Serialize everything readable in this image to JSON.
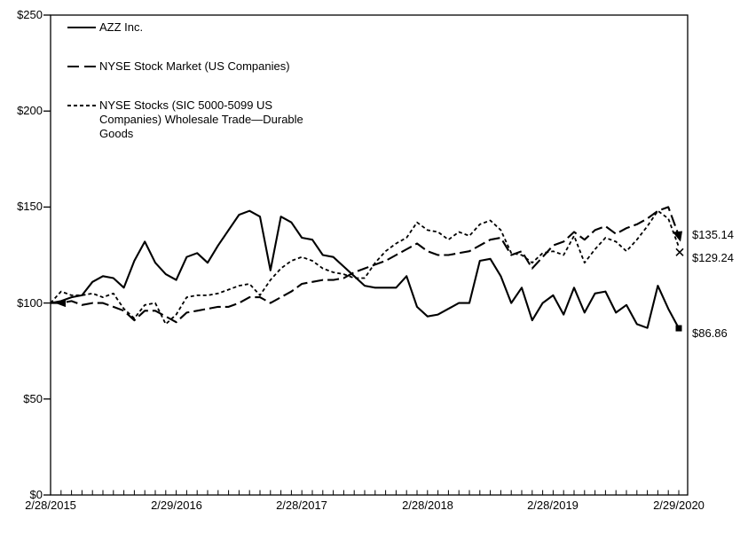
{
  "chart_data": {
    "type": "line",
    "title": "",
    "grid": false,
    "legend_position": "top-left",
    "x_axis": {
      "tick_labels": [
        "2/28/2015",
        "2/29/2016",
        "2/28/2017",
        "2/28/2018",
        "2/28/2019",
        "2/29/2020"
      ],
      "minor_tick_interval": "monthly",
      "points_per_series": 61
    },
    "y_axis": {
      "tick_labels": [
        "$0",
        "$50",
        "$100",
        "$150",
        "$200",
        "$250"
      ],
      "range": [
        0,
        250
      ]
    },
    "series": [
      {
        "name": "AZZ Inc.",
        "line_style": "solid",
        "end_marker": "square",
        "end_label": "$86.86",
        "values": [
          100,
          101,
          103,
          104,
          111,
          114,
          113,
          108,
          122,
          132,
          121,
          115,
          112,
          124,
          126,
          121,
          130,
          138,
          146,
          148,
          145,
          117,
          145,
          142,
          134,
          133,
          125,
          124,
          119,
          114,
          109,
          108,
          108,
          108,
          114,
          98,
          93,
          94,
          97,
          100,
          100,
          122,
          123,
          114,
          100,
          108,
          91,
          100,
          104,
          94,
          108,
          95,
          105,
          106,
          95,
          99,
          89,
          87,
          109,
          97,
          86.86
        ]
      },
      {
        "name": "NYSE Stock Market (US Companies)",
        "line_style": "long-dash",
        "end_marker": "arrow",
        "end_label": "$135.14",
        "values": [
          100,
          100,
          101,
          99,
          100,
          100,
          98,
          96,
          91,
          96,
          96,
          93,
          90,
          95,
          96,
          97,
          98,
          98,
          100,
          103,
          103,
          100,
          103,
          106,
          110,
          111,
          112,
          112,
          113,
          116,
          118,
          120,
          122,
          125,
          128,
          131,
          127,
          125,
          125,
          126,
          127,
          130,
          133,
          134,
          125,
          127,
          118,
          124,
          130,
          132,
          137,
          133,
          138,
          140,
          136,
          139,
          141,
          144,
          148,
          150,
          135.14
        ]
      },
      {
        "name": "NYSE Stocks (SIC 5000-5099 US\nCompanies) Wholesale Trade—Durable\nGoods",
        "line_style": "short-dash",
        "end_marker": "x",
        "end_label": "$129.24",
        "values": [
          100,
          106,
          104,
          104,
          105,
          103,
          105,
          97,
          92,
          99,
          100,
          89,
          94,
          103,
          104,
          104,
          105,
          107,
          109,
          110,
          104,
          112,
          118,
          122,
          124,
          122,
          118,
          116,
          115,
          113,
          113,
          121,
          127,
          131,
          134,
          142,
          138,
          137,
          133,
          137,
          135,
          141,
          143,
          138,
          126,
          125,
          121,
          126,
          127,
          125,
          135,
          121,
          128,
          134,
          132,
          127,
          133,
          140,
          148,
          144,
          129.24
        ]
      }
    ]
  },
  "colors": {
    "line": "#000000",
    "text": "#000000",
    "background": "#ffffff"
  }
}
